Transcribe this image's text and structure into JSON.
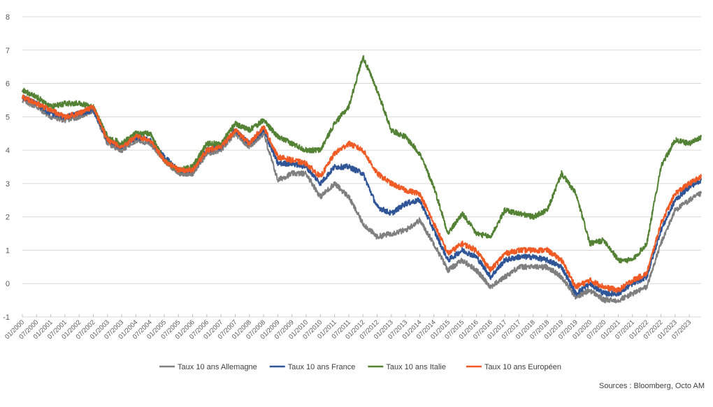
{
  "chart_data": {
    "type": "line",
    "title": "",
    "xlabel": "",
    "ylabel": "",
    "ylim": [
      -1,
      8
    ],
    "yticks": [
      -1,
      0,
      1,
      2,
      3,
      4,
      5,
      6,
      7,
      8
    ],
    "grid": true,
    "legend_position": "bottom",
    "xtick_labels": [
      "01/2000",
      "07/2000",
      "01/2001",
      "07/2001",
      "01/2002",
      "07/2002",
      "01/2003",
      "07/2003",
      "01/2004",
      "07/2004",
      "01/2005",
      "07/2005",
      "01/2006",
      "07/2006",
      "01/2007",
      "07/2007",
      "01/2008",
      "07/2008",
      "01/2009",
      "07/2009",
      "01/2010",
      "07/2010",
      "01/2011",
      "07/2011",
      "01/2012",
      "07/2012",
      "01/2013",
      "07/2013",
      "01/2014",
      "07/2014",
      "01/2015",
      "07/2015",
      "01/2016",
      "07/2016",
      "01/2017",
      "07/2017",
      "01/2018",
      "07/2018",
      "01/2019",
      "07/2019",
      "01/2020",
      "07/2020",
      "01/2021",
      "07/2021",
      "01/2022",
      "07/2022",
      "01/2023",
      "07/2023"
    ],
    "x": [
      "01/2000",
      "07/2000",
      "01/2001",
      "07/2001",
      "01/2002",
      "07/2002",
      "01/2003",
      "07/2003",
      "01/2004",
      "07/2004",
      "01/2005",
      "07/2005",
      "01/2006",
      "07/2006",
      "01/2007",
      "07/2007",
      "01/2008",
      "07/2008",
      "01/2009",
      "07/2009",
      "01/2010",
      "07/2010",
      "01/2011",
      "07/2011",
      "01/2012",
      "07/2012",
      "01/2013",
      "07/2013",
      "01/2014",
      "07/2014",
      "01/2015",
      "07/2015",
      "01/2016",
      "07/2016",
      "01/2017",
      "07/2017",
      "01/2018",
      "07/2018",
      "01/2019",
      "07/2019",
      "01/2020",
      "07/2020",
      "01/2021",
      "07/2021",
      "01/2022",
      "07/2022",
      "01/2023",
      "07/2023",
      "12/2023"
    ],
    "series": [
      {
        "name": "Taux 10 ans Allemagne",
        "color": "#7f7f7f",
        "values": [
          5.5,
          5.3,
          5.0,
          4.9,
          5.0,
          5.2,
          4.2,
          4.0,
          4.3,
          4.2,
          3.7,
          3.3,
          3.3,
          3.9,
          4.0,
          4.5,
          4.1,
          4.5,
          3.1,
          3.3,
          3.3,
          2.6,
          3.0,
          2.6,
          1.8,
          1.4,
          1.5,
          1.6,
          1.9,
          1.2,
          0.4,
          0.7,
          0.4,
          -0.1,
          0.2,
          0.5,
          0.5,
          0.5,
          0.2,
          -0.4,
          -0.2,
          -0.5,
          -0.5,
          -0.3,
          -0.1,
          1.2,
          2.2,
          2.5,
          2.7
        ]
      },
      {
        "name": "Taux 10 ans France",
        "color": "#2f5597",
        "values": [
          5.6,
          5.4,
          5.1,
          5.0,
          5.1,
          5.2,
          4.3,
          4.1,
          4.4,
          4.3,
          3.8,
          3.4,
          3.4,
          4.0,
          4.1,
          4.6,
          4.2,
          4.6,
          3.6,
          3.6,
          3.5,
          3.0,
          3.5,
          3.5,
          3.3,
          2.3,
          2.1,
          2.4,
          2.5,
          1.6,
          0.7,
          1.0,
          0.8,
          0.2,
          0.7,
          0.8,
          0.8,
          0.7,
          0.5,
          -0.3,
          0.0,
          -0.3,
          -0.3,
          0.0,
          0.2,
          1.6,
          2.5,
          2.9,
          3.1
        ]
      },
      {
        "name": "Taux 10 ans Italie",
        "color": "#548235",
        "values": [
          5.8,
          5.6,
          5.3,
          5.4,
          5.4,
          5.3,
          4.4,
          4.2,
          4.5,
          4.5,
          3.7,
          3.4,
          3.5,
          4.2,
          4.2,
          4.8,
          4.6,
          4.9,
          4.4,
          4.2,
          4.0,
          4.0,
          4.8,
          5.3,
          6.8,
          5.8,
          4.6,
          4.4,
          3.9,
          2.9,
          1.5,
          2.1,
          1.5,
          1.4,
          2.2,
          2.1,
          2.0,
          2.2,
          3.3,
          2.7,
          1.2,
          1.3,
          0.7,
          0.7,
          1.2,
          3.5,
          4.3,
          4.2,
          4.4
        ]
      },
      {
        "name": "Taux 10 ans Européen",
        "color": "#f05a24",
        "values": [
          5.6,
          5.4,
          5.2,
          5.0,
          5.1,
          5.3,
          4.3,
          4.1,
          4.4,
          4.3,
          3.7,
          3.4,
          3.4,
          4.0,
          4.1,
          4.6,
          4.2,
          4.7,
          3.8,
          3.7,
          3.6,
          3.2,
          3.9,
          4.2,
          4.0,
          3.3,
          3.0,
          2.8,
          2.7,
          1.8,
          0.9,
          1.2,
          1.0,
          0.4,
          0.9,
          1.0,
          1.0,
          1.0,
          0.7,
          -0.1,
          0.1,
          -0.1,
          -0.2,
          0.1,
          0.3,
          1.8,
          2.7,
          3.0,
          3.2
        ]
      }
    ]
  },
  "footer": {
    "source": "Sources : Bloomberg, Octo AM"
  }
}
